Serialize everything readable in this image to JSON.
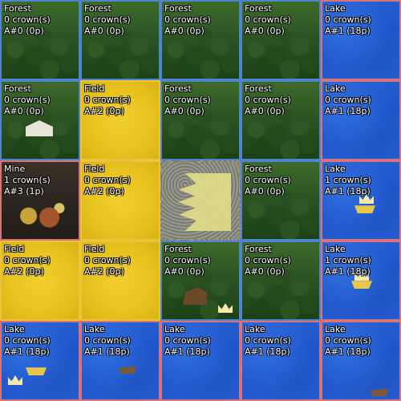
{
  "crown_suffix": "crown(s)",
  "rows": [
    [
      {
        "terrain": "Forest",
        "crowns": "0",
        "id": "A#0",
        "points": "(0p)",
        "border": "b-blue"
      },
      {
        "terrain": "Forest",
        "crowns": "0",
        "id": "A#0",
        "points": "(0p)",
        "border": "b-blue"
      },
      {
        "terrain": "Forest",
        "crowns": "0",
        "id": "A#0",
        "points": "(0p)",
        "border": "b-blue"
      },
      {
        "terrain": "Forest",
        "crowns": "0",
        "id": "A#0",
        "points": "(0p)",
        "border": "b-blue"
      },
      {
        "terrain": "Lake",
        "crowns": "0",
        "id": "A#1",
        "points": "(18p)",
        "border": "b-pink"
      }
    ],
    [
      {
        "terrain": "Forest",
        "crowns": "0",
        "id": "A#0",
        "points": "(0p)",
        "border": "b-blue"
      },
      {
        "terrain": "Field",
        "crowns": "0",
        "id": "A#2",
        "points": "(0p)",
        "border": "b-yellow"
      },
      {
        "terrain": "Forest",
        "crowns": "0",
        "id": "A#0",
        "points": "(0p)",
        "border": "b-blue"
      },
      {
        "terrain": "Forest",
        "crowns": "0",
        "id": "A#0",
        "points": "(0p)",
        "border": "b-blue"
      },
      {
        "terrain": "Lake",
        "crowns": "0",
        "id": "A#1",
        "points": "(18p)",
        "border": "b-pink"
      }
    ],
    [
      {
        "terrain": "Mine",
        "crowns": "1",
        "id": "A#3",
        "points": "(1p)",
        "border": "b-pink"
      },
      {
        "terrain": "Field",
        "crowns": "0",
        "id": "A#2",
        "points": "(0p)",
        "border": "b-yellow"
      },
      {
        "terrain": "Castle",
        "crowns": "",
        "id": "",
        "points": "",
        "border": "b-none"
      },
      {
        "terrain": "Forest",
        "crowns": "0",
        "id": "A#0",
        "points": "(0p)",
        "border": "b-blue"
      },
      {
        "terrain": "Lake",
        "crowns": "1",
        "id": "A#1",
        "points": "(18p)",
        "border": "b-pink"
      }
    ],
    [
      {
        "terrain": "Field",
        "crowns": "0",
        "id": "A#2",
        "points": "(0p)",
        "border": "b-yellow"
      },
      {
        "terrain": "Field",
        "crowns": "0",
        "id": "A#2",
        "points": "(0p)",
        "border": "b-yellow"
      },
      {
        "terrain": "Forest",
        "crowns": "0",
        "id": "A#0",
        "points": "(0p)",
        "border": "b-blue"
      },
      {
        "terrain": "Forest",
        "crowns": "0",
        "id": "A#0",
        "points": "(0p)",
        "border": "b-blue"
      },
      {
        "terrain": "Lake",
        "crowns": "1",
        "id": "A#1",
        "points": "(18p)",
        "border": "b-pink"
      }
    ],
    [
      {
        "terrain": "Lake",
        "crowns": "0",
        "id": "A#1",
        "points": "(18p)",
        "border": "b-pink"
      },
      {
        "terrain": "Lake",
        "crowns": "0",
        "id": "A#1",
        "points": "(18p)",
        "border": "b-pink"
      },
      {
        "terrain": "Lake",
        "crowns": "0",
        "id": "A#1",
        "points": "(18p)",
        "border": "b-pink"
      },
      {
        "terrain": "Lake",
        "crowns": "0",
        "id": "A#1",
        "points": "(18p)",
        "border": "b-pink"
      },
      {
        "terrain": "Lake",
        "crowns": "0",
        "id": "A#1",
        "points": "(18p)",
        "border": "b-pink"
      }
    ]
  ]
}
